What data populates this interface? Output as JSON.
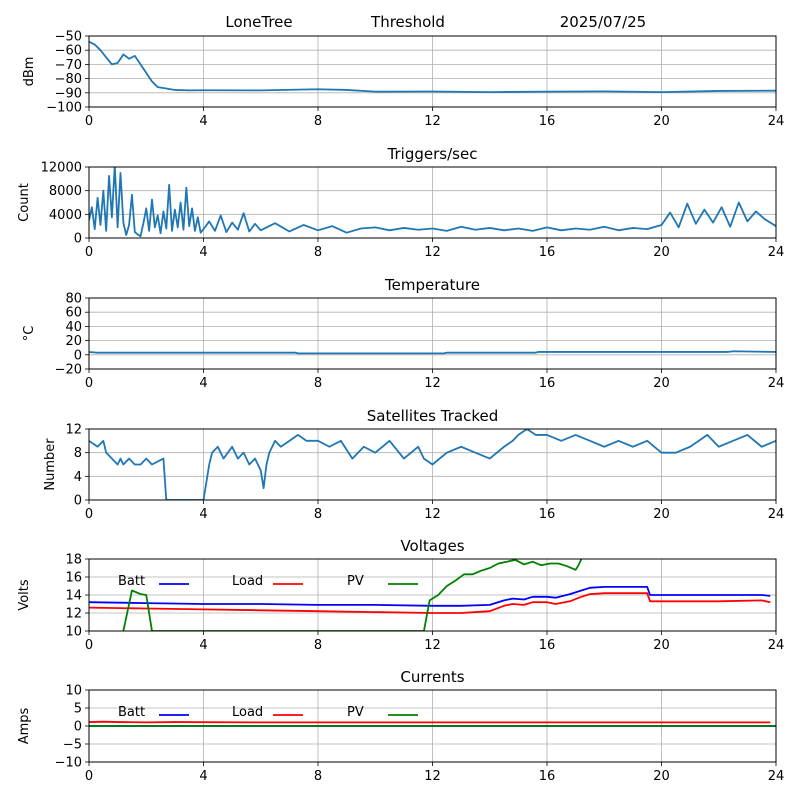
{
  "header": {
    "station": "LoneTree",
    "mode": "Threshold",
    "date": "2025/07/25"
  },
  "colors": {
    "series_default": "#1f77b4",
    "batt": "#0000ff",
    "load": "#ff0000",
    "pv": "#008000",
    "grid": "#b0b0b0"
  },
  "chart_data": [
    {
      "type": "line",
      "title": "",
      "ylabel": "dBm",
      "xlim": [
        0,
        24
      ],
      "ylim": [
        -100,
        -50
      ],
      "xticks": [
        0,
        4,
        8,
        12,
        16,
        20,
        24
      ],
      "yticks": [
        -100,
        -90,
        -80,
        -70,
        -60,
        -50
      ],
      "grid": true,
      "series": [
        {
          "x": [
            0,
            0.2,
            0.4,
            0.6,
            0.8,
            1.0,
            1.2,
            1.4,
            1.6,
            1.8,
            2.0,
            2.2,
            2.4,
            2.7,
            3.0,
            3.5,
            4,
            6,
            8,
            9,
            10,
            12,
            14,
            16,
            18,
            20,
            22,
            24
          ],
          "y": [
            -54,
            -56,
            -60,
            -65,
            -70,
            -69,
            -63,
            -66,
            -64,
            -70,
            -76,
            -82,
            -86,
            -87,
            -88,
            -88.3,
            -88.2,
            -88.3,
            -87.5,
            -88,
            -89.2,
            -89.1,
            -89.5,
            -89.2,
            -89,
            -89.5,
            -88.7,
            -88.5
          ]
        }
      ]
    },
    {
      "type": "line",
      "title": "Triggers/sec",
      "ylabel": "Count",
      "xlim": [
        0,
        24
      ],
      "ylim": [
        0,
        12000
      ],
      "xticks": [
        0,
        4,
        8,
        12,
        16,
        20,
        24
      ],
      "yticks": [
        0,
        4000,
        8000,
        12000
      ],
      "grid": true,
      "series": [
        {
          "x": [
            0,
            0.1,
            0.2,
            0.3,
            0.4,
            0.5,
            0.6,
            0.7,
            0.8,
            0.9,
            1.0,
            1.1,
            1.2,
            1.3,
            1.4,
            1.5,
            1.6,
            1.7,
            1.8,
            1.9,
            2.0,
            2.1,
            2.2,
            2.3,
            2.4,
            2.5,
            2.6,
            2.7,
            2.8,
            2.9,
            3.0,
            3.1,
            3.2,
            3.3,
            3.4,
            3.5,
            3.6,
            3.7,
            3.8,
            3.9,
            4.0,
            4.2,
            4.4,
            4.6,
            4.8,
            5.0,
            5.2,
            5.4,
            5.6,
            5.8,
            6.0,
            6.5,
            7.0,
            7.5,
            8.0,
            8.5,
            9.0,
            9.5,
            10.0,
            10.5,
            11.0,
            11.5,
            12.0,
            12.5,
            13.0,
            13.5,
            14.0,
            14.5,
            15.0,
            15.5,
            16.0,
            16.5,
            17.0,
            17.5,
            18.0,
            18.5,
            19.0,
            19.5,
            20.0,
            20.3,
            20.6,
            20.9,
            21.2,
            21.5,
            21.8,
            22.1,
            22.4,
            22.7,
            23.0,
            23.3,
            23.6,
            24.0
          ],
          "y": [
            3000,
            5200,
            1500,
            6800,
            2200,
            8000,
            1200,
            10500,
            3500,
            12300,
            1800,
            11000,
            2600,
            500,
            2200,
            7300,
            1000,
            600,
            300,
            2500,
            5000,
            1200,
            6500,
            1800,
            3800,
            800,
            4500,
            1600,
            9000,
            1200,
            4800,
            1800,
            6000,
            1400,
            8500,
            2000,
            5000,
            1200,
            3500,
            900,
            1500,
            2800,
            1200,
            3800,
            1000,
            2600,
            1400,
            4200,
            1100,
            2400,
            1300,
            2500,
            1100,
            2200,
            1300,
            2000,
            900,
            1600,
            1800,
            1300,
            1700,
            1400,
            1600,
            1200,
            1900,
            1400,
            1700,
            1300,
            1600,
            1200,
            1800,
            1300,
            1600,
            1400,
            1900,
            1300,
            1700,
            1500,
            2200,
            4300,
            1800,
            5800,
            2400,
            4800,
            2600,
            5200,
            1900,
            6000,
            2800,
            4500,
            3200,
            2000
          ]
        }
      ]
    },
    {
      "type": "line",
      "title": "Temperature",
      "ylabel": "°C",
      "xlim": [
        0,
        24
      ],
      "ylim": [
        -20,
        80
      ],
      "xticks": [
        0,
        4,
        8,
        12,
        16,
        20,
        24
      ],
      "yticks": [
        -20,
        0,
        20,
        40,
        60,
        80
      ],
      "grid": true,
      "series": [
        {
          "x": [
            0,
            0.3,
            1,
            4,
            7.2,
            7.3,
            12.4,
            12.5,
            15.6,
            15.7,
            22.3,
            22.5,
            24
          ],
          "y": [
            4,
            3,
            3,
            3,
            3,
            2,
            2,
            3,
            3,
            4,
            4,
            5,
            4
          ]
        }
      ]
    },
    {
      "type": "line",
      "title": "Satellites Tracked",
      "ylabel": "Number",
      "xlim": [
        0,
        24
      ],
      "ylim": [
        0,
        12
      ],
      "xticks": [
        0,
        4,
        8,
        12,
        16,
        20,
        24
      ],
      "yticks": [
        0,
        4,
        8,
        12
      ],
      "grid": true,
      "series": [
        {
          "x": [
            0,
            0.3,
            0.5,
            0.6,
            0.8,
            1.0,
            1.1,
            1.2,
            1.4,
            1.6,
            1.8,
            2.0,
            2.2,
            2.6,
            2.7,
            3.4,
            4.0,
            4.1,
            4.2,
            4.3,
            4.5,
            4.7,
            5.0,
            5.2,
            5.4,
            5.6,
            5.8,
            6.0,
            6.1,
            6.2,
            6.3,
            6.4,
            6.5,
            6.7,
            7.0,
            7.3,
            7.6,
            8.0,
            8.4,
            8.8,
            9.2,
            9.6,
            10.0,
            10.5,
            11.0,
            11.5,
            11.7,
            12.0,
            12.5,
            13.0,
            13.5,
            14.0,
            14.5,
            14.8,
            15.0,
            15.3,
            15.6,
            16.0,
            16.5,
            17.0,
            17.5,
            18.0,
            18.5,
            19.0,
            19.5,
            20.0,
            20.5,
            21.0,
            21.3,
            21.6,
            22.0,
            22.5,
            23.0,
            23.5,
            24.0
          ],
          "y": [
            10,
            9,
            10,
            8,
            7,
            6,
            7,
            6,
            7,
            6,
            6,
            7,
            6,
            7,
            0,
            0,
            0,
            3,
            6,
            8,
            9,
            7,
            9,
            7,
            8,
            6,
            7,
            5,
            2,
            6,
            8,
            9,
            10,
            9,
            10,
            11,
            10,
            10,
            9,
            10,
            7,
            9,
            8,
            10,
            7,
            9,
            7,
            6,
            8,
            9,
            8,
            7,
            9,
            10,
            11,
            12,
            11,
            11,
            10,
            11,
            10,
            9,
            10,
            9,
            10,
            8,
            8,
            9,
            10,
            11,
            9,
            10,
            11,
            9,
            10
          ]
        }
      ]
    },
    {
      "type": "line",
      "title": "Voltages",
      "ylabel": "Volts",
      "xlim": [
        0,
        24
      ],
      "ylim": [
        10,
        18
      ],
      "xticks": [
        0,
        4,
        8,
        12,
        16,
        20,
        24
      ],
      "yticks": [
        10,
        12,
        14,
        16,
        18
      ],
      "grid": true,
      "legend": [
        "Batt",
        "Load",
        "PV"
      ],
      "series": [
        {
          "name": "Batt",
          "x": [
            0,
            2,
            4,
            6,
            8,
            10,
            12,
            13,
            14,
            14.5,
            14.8,
            15.2,
            15.5,
            16,
            16.3,
            16.8,
            17.2,
            17.5,
            18,
            19,
            19.5,
            19.6,
            20,
            22,
            23.5,
            23.8
          ],
          "y": [
            13.2,
            13.1,
            13.0,
            13.0,
            12.9,
            12.9,
            12.8,
            12.8,
            12.9,
            13.4,
            13.6,
            13.5,
            13.8,
            13.8,
            13.7,
            14.1,
            14.5,
            14.8,
            14.9,
            14.9,
            14.9,
            14.0,
            14.0,
            14.0,
            14.0,
            13.9
          ]
        },
        {
          "name": "Load",
          "x": [
            0,
            2,
            4,
            6,
            8,
            10,
            12,
            13,
            14,
            14.5,
            14.8,
            15.2,
            15.5,
            16,
            16.3,
            16.8,
            17.2,
            17.5,
            18,
            19,
            19.5,
            19.6,
            20,
            22,
            23.5,
            23.8
          ],
          "y": [
            12.6,
            12.5,
            12.4,
            12.3,
            12.2,
            12.1,
            12.0,
            12.0,
            12.2,
            12.8,
            13.0,
            12.9,
            13.2,
            13.2,
            13.0,
            13.3,
            13.8,
            14.1,
            14.2,
            14.2,
            14.2,
            13.3,
            13.3,
            13.3,
            13.4,
            13.2
          ]
        },
        {
          "name": "PV",
          "x": [
            1.2,
            1.5,
            1.8,
            2.0,
            2.2,
            11.7,
            11.9,
            12.2,
            12.5,
            12.8,
            13.1,
            13.4,
            13.7,
            14.0,
            14.3,
            14.6,
            14.9,
            15.2,
            15.5,
            15.8,
            16.1,
            16.4,
            16.7,
            17.0,
            17.1,
            17.2
          ],
          "y": [
            10.0,
            14.5,
            14.1,
            14.0,
            10.0,
            10.0,
            13.4,
            14.0,
            15.0,
            15.6,
            16.3,
            16.3,
            16.7,
            17.0,
            17.5,
            17.7,
            17.9,
            17.4,
            17.7,
            17.3,
            17.5,
            17.5,
            17.2,
            16.8,
            17.3,
            18.0
          ]
        }
      ]
    },
    {
      "type": "line",
      "title": "Currents",
      "ylabel": "Amps",
      "xlim": [
        0,
        24
      ],
      "ylim": [
        -10,
        10
      ],
      "xticks": [
        0,
        4,
        8,
        12,
        16,
        20,
        24
      ],
      "yticks": [
        -10,
        -5,
        0,
        5,
        10
      ],
      "grid": true,
      "legend": [
        "Batt",
        "Load",
        "PV"
      ],
      "series": [
        {
          "name": "Batt",
          "x": [
            0,
            24
          ],
          "y": [
            0,
            0
          ]
        },
        {
          "name": "Load",
          "x": [
            0,
            0.5,
            1,
            2,
            3,
            6,
            10,
            14,
            18,
            22,
            23.8
          ],
          "y": [
            1.1,
            1.2,
            1.1,
            1.0,
            1.1,
            1.0,
            1.0,
            1.0,
            1.0,
            1.0,
            1.0
          ]
        },
        {
          "name": "PV",
          "x": [
            0,
            24
          ],
          "y": [
            0,
            0
          ]
        }
      ]
    }
  ]
}
